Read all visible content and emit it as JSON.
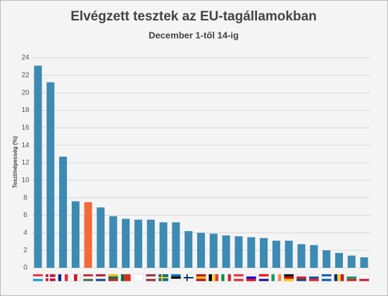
{
  "chart_data": {
    "type": "bar",
    "title": "Elvégzett tesztek az EU-tagállamokban",
    "subtitle": "December 1-től 14-ig",
    "y_label": "Teszt/népesség (%)",
    "categories": [
      null,
      null,
      null,
      null,
      null,
      null,
      null,
      null,
      null,
      null,
      null,
      null,
      null,
      null,
      null,
      null,
      null,
      null,
      null,
      null,
      null,
      null,
      null,
      null,
      null,
      null,
      null
    ],
    "values": [
      23.1,
      21.2,
      12.7,
      7.6,
      7.5,
      6.9,
      5.9,
      5.6,
      5.5,
      5.5,
      5.2,
      5.2,
      4.2,
      4.0,
      3.9,
      3.7,
      3.6,
      3.5,
      3.4,
      3.1,
      3.1,
      2.7,
      2.6,
      2.0,
      1.7,
      1.4,
      1.2
    ],
    "colors": [
      "#3d8ab3",
      "#3d8ab3",
      "#3d8ab3",
      "#3d8ab3",
      "#f26a3b",
      "#3d8ab3",
      "#3d8ab3",
      "#3d8ab3",
      "#3d8ab3",
      "#3d8ab3",
      "#3d8ab3",
      "#3d8ab3",
      "#3d8ab3",
      "#3d8ab3",
      "#3d8ab3",
      "#3d8ab3",
      "#3d8ab3",
      "#3d8ab3",
      "#3d8ab3",
      "#3d8ab3",
      "#3d8ab3",
      "#3d8ab3",
      "#3d8ab3",
      "#3d8ab3",
      "#3d8ab3",
      "#3d8ab3",
      "#3d8ab3"
    ],
    "ylim": [
      0,
      24
    ],
    "yticks": [
      0,
      2,
      4,
      6,
      8,
      10,
      12,
      14,
      16,
      18,
      20,
      22,
      24
    ],
    "grid": true
  }
}
